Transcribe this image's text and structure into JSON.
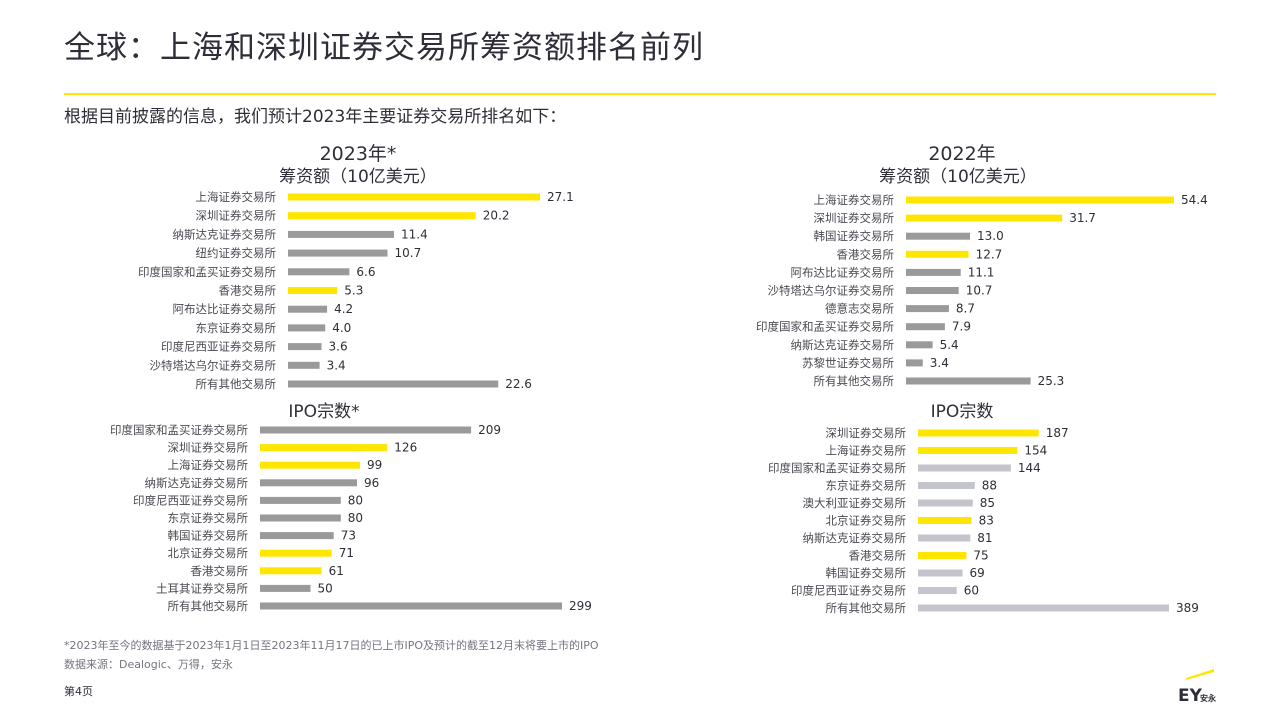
{
  "page": {
    "title": "全球：上海和深圳证券交易所筹资额排名前列",
    "subtitle": "根据目前披露的信息，我们预计2023年主要证券交易所排名如下：",
    "footnote1": "*2023年至今的数据基于2023年1月1日至2023年11月17日的已上市IPO及预计的截至12月末将要上市的IPO",
    "footnote2": "数据来源：Dealogic、万得，安永",
    "page_number": "第4页",
    "logo_text": "EY",
    "logo_subtext": "安永"
  },
  "colors": {
    "highlight": "#ffe600",
    "bar_gray": "#9a9a9a",
    "bar_light": "#c4c4cd",
    "text": "#2e2e38"
  },
  "chart_data": [
    {
      "type": "bar",
      "orientation": "horizontal",
      "group": "2023年*",
      "title": "筹资额（10亿美元）",
      "categories": [
        "上海证券交易所",
        "深圳证券交易所",
        "纳斯达克证券交易所",
        "纽约证券交易所",
        "印度国家和孟买证券交易所",
        "香港交易所",
        "阿布达比证券交易所",
        "东京证券交易所",
        "印度尼西亚证券交易所",
        "沙特塔达乌尔证券交易所",
        "所有其他交易所"
      ],
      "values": [
        27.1,
        20.2,
        11.4,
        10.7,
        6.6,
        5.3,
        4.2,
        4.0,
        3.6,
        3.4,
        22.6
      ],
      "labels": [
        "27.1",
        "20.2",
        "11.4",
        "10.7",
        "6.6",
        "5.3",
        "4.2",
        "4.0",
        "3.6",
        "3.4",
        "22.6"
      ],
      "highlight": [
        true,
        true,
        false,
        false,
        false,
        true,
        false,
        false,
        false,
        false,
        false
      ]
    },
    {
      "type": "bar",
      "orientation": "horizontal",
      "title": "IPO宗数*",
      "categories": [
        "印度国家和孟买证券交易所",
        "深圳证券交易所",
        "上海证券交易所",
        "纳斯达克证券交易所",
        "印度尼西亚证券交易所",
        "东京证券交易所",
        "韩国证券交易所",
        "北京证券交易所",
        "香港交易所",
        "土耳其证券交易所",
        "所有其他交易所"
      ],
      "values": [
        209,
        126,
        99,
        96,
        80,
        80,
        73,
        71,
        61,
        50,
        299
      ],
      "labels": [
        "209",
        "126",
        "99",
        "96",
        "80",
        "80",
        "73",
        "71",
        "61",
        "50",
        "299"
      ],
      "highlight": [
        false,
        true,
        true,
        false,
        false,
        false,
        false,
        true,
        true,
        false,
        false
      ]
    },
    {
      "type": "bar",
      "orientation": "horizontal",
      "group": "2022年",
      "title": "筹资额（10亿美元）",
      "categories": [
        "上海证券交易所",
        "深圳证券交易所",
        "韩国证券交易所",
        "香港交易所",
        "阿布达比证券交易所",
        "沙特塔达乌尔证券交易所",
        "德意志交易所",
        "印度国家和孟买证券交易所",
        "纳斯达克证券交易所",
        "苏黎世证券交易所",
        "所有其他交易所"
      ],
      "values": [
        54.4,
        31.7,
        13.0,
        12.7,
        11.1,
        10.7,
        8.7,
        7.9,
        5.4,
        3.4,
        25.3
      ],
      "labels": [
        "54.4",
        "31.7",
        "13.0",
        "12.7",
        "11.1",
        "10.7",
        "8.7",
        "7.9",
        "5.4",
        "3.4",
        "25.3"
      ],
      "highlight": [
        true,
        true,
        false,
        true,
        false,
        false,
        false,
        false,
        false,
        false,
        false
      ]
    },
    {
      "type": "bar",
      "orientation": "horizontal",
      "title": "IPO宗数",
      "categories": [
        "深圳证券交易所",
        "上海证券交易所",
        "印度国家和孟买证券交易所",
        "东京证券交易所",
        "澳大利亚证券交易所",
        "北京证券交易所",
        "纳斯达克证券交易所",
        "香港交易所",
        "韩国证券交易所",
        "印度尼西亚证券交易所",
        "所有其他交易所"
      ],
      "values": [
        187,
        154,
        144,
        88,
        85,
        83,
        81,
        75,
        69,
        60,
        389
      ],
      "labels": [
        "187",
        "154",
        "144",
        "88",
        "85",
        "83",
        "81",
        "75",
        "69",
        "60",
        "389"
      ],
      "highlight": [
        true,
        true,
        false,
        false,
        false,
        true,
        false,
        true,
        false,
        false,
        false
      ]
    }
  ]
}
